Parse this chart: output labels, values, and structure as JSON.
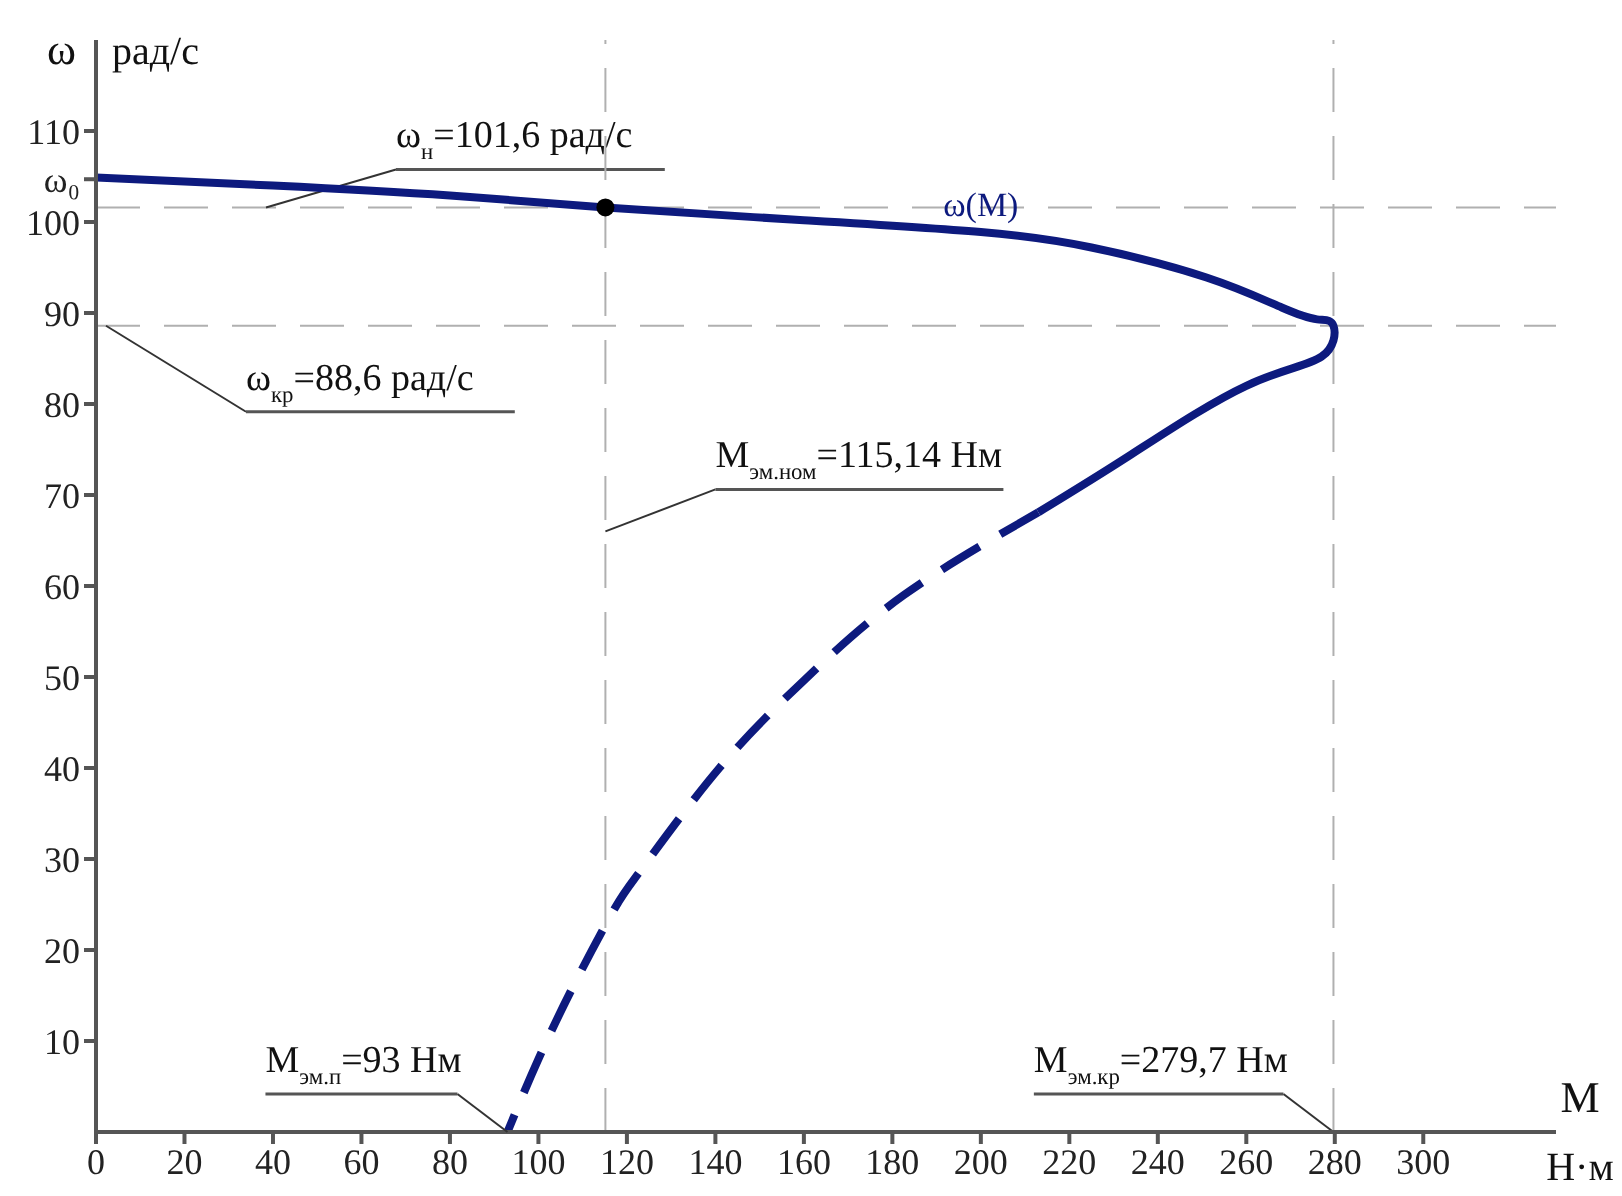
{
  "chart_data": {
    "type": "line",
    "xlabel": "M Н·м",
    "ylabel": "ω рад/с",
    "xlim": [
      0,
      330
    ],
    "ylim": [
      0,
      120
    ],
    "xticks": [
      0,
      20,
      40,
      60,
      80,
      100,
      120,
      140,
      160,
      180,
      200,
      220,
      240,
      260,
      280,
      300
    ],
    "yticks": [
      10,
      20,
      30,
      40,
      50,
      60,
      70,
      80,
      90,
      100,
      {
        "value": 104.7,
        "label": "ω₀"
      },
      110
    ],
    "grid": false,
    "legend": false,
    "series": [
      {
        "name": "ω(M)",
        "color": "#0d1a7e",
        "line_style": "solid",
        "x": [
          0,
          40,
          80,
          115.14,
          160,
          200,
          225,
          251,
          268,
          276,
          279.7,
          277,
          260,
          233.5,
          213
        ],
        "values": [
          104.9,
          104,
          102.9,
          101.6,
          100.2,
          98.9,
          97.2,
          93.9,
          90.6,
          89.3,
          88.6,
          85.2,
          82,
          74.3,
          68.1
        ]
      },
      {
        "color": "#0d1a7e",
        "line_style": "dashed",
        "x": [
          213,
          182.6,
          160.4,
          140.9,
          123.5,
          117.4,
          108.7,
          100,
          93
        ],
        "values": [
          68.1,
          59,
          49.8,
          40,
          29,
          24.7,
          16.8,
          8,
          0
        ]
      },
      {
        "type": "scatter",
        "color": "#000000",
        "marker": "circle",
        "x": [
          115.14
        ],
        "values": [
          101.6
        ]
      }
    ],
    "ref_lines": [
      {
        "axis": "y",
        "value": 101.6,
        "label": "ω$_{н}$=101,6 рад/с",
        "color": "#b0b0b0",
        "line_style": "dashed"
      },
      {
        "axis": "y",
        "value": 88.6,
        "label": "ω$_{кр}$=88,6 рад/с",
        "color": "#b0b0b0",
        "line_style": "dashed"
      },
      {
        "axis": "x",
        "value": 115.14,
        "label": "M$_{эм.ном}$=115,14 Нм",
        "color": "#b0b0b0",
        "line_style": "dashed"
      },
      {
        "axis": "x",
        "value": 279.7,
        "label": "M$_{эм.кр}$=279,7 Нм",
        "color": "#b0b0b0",
        "line_style": "dashed"
      }
    ],
    "annotations": [
      {
        "text": "M$_{эм.п}$=93 Нм",
        "x": 93,
        "y": 0
      }
    ]
  }
}
